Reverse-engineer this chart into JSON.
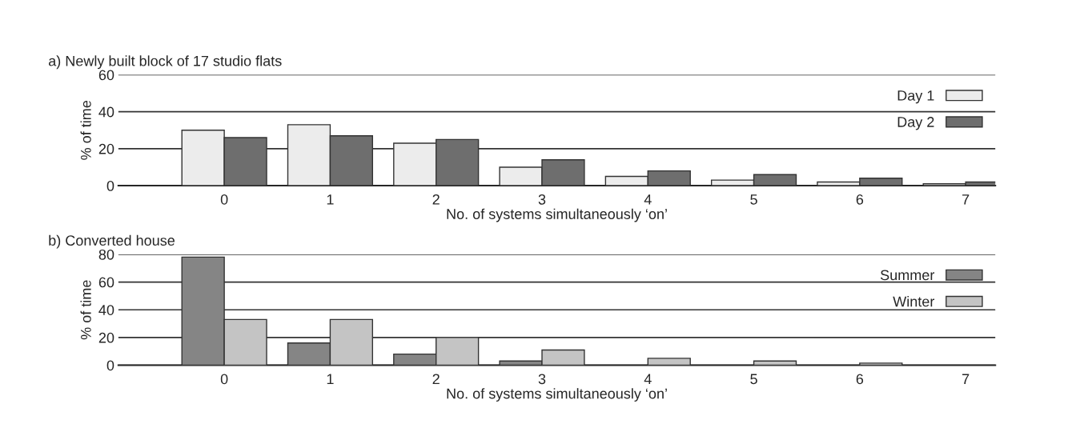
{
  "chart_data": [
    {
      "type": "bar",
      "title": "a) Newly built block of 17 studio flats",
      "xlabel": "No. of systems simultaneously ‘on’",
      "ylabel": "% of time",
      "categories": [
        "0",
        "1",
        "2",
        "3",
        "4",
        "5",
        "6",
        "7"
      ],
      "series": [
        {
          "name": "Day 1",
          "color": "#ececec",
          "values": [
            30,
            33,
            23,
            10,
            5,
            3,
            2,
            1
          ]
        },
        {
          "name": "Day 2",
          "color": "#6e6e6e",
          "values": [
            26,
            27,
            25,
            14,
            8,
            6,
            4,
            2
          ]
        }
      ],
      "ylim": [
        0,
        60
      ],
      "yticks": [
        0,
        20,
        40,
        60
      ],
      "grid": "y",
      "legend": "top right"
    },
    {
      "type": "bar",
      "title": "b) Converted house",
      "xlabel": "No. of systems simultaneously ‘on’",
      "ylabel": "% of time",
      "categories": [
        "0",
        "1",
        "2",
        "3",
        "4",
        "5",
        "6",
        "7"
      ],
      "series": [
        {
          "name": "Summer",
          "color": "#858585",
          "values": [
            78,
            16,
            8,
            3,
            null,
            null,
            null,
            null
          ]
        },
        {
          "name": "Winter",
          "color": "#c4c4c4",
          "values": [
            33,
            33,
            20,
            11,
            5,
            3,
            1.5,
            null
          ]
        }
      ],
      "ylim": [
        0,
        80
      ],
      "yticks": [
        0,
        20,
        40,
        60,
        80
      ],
      "grid": "y",
      "legend": "top right"
    }
  ]
}
